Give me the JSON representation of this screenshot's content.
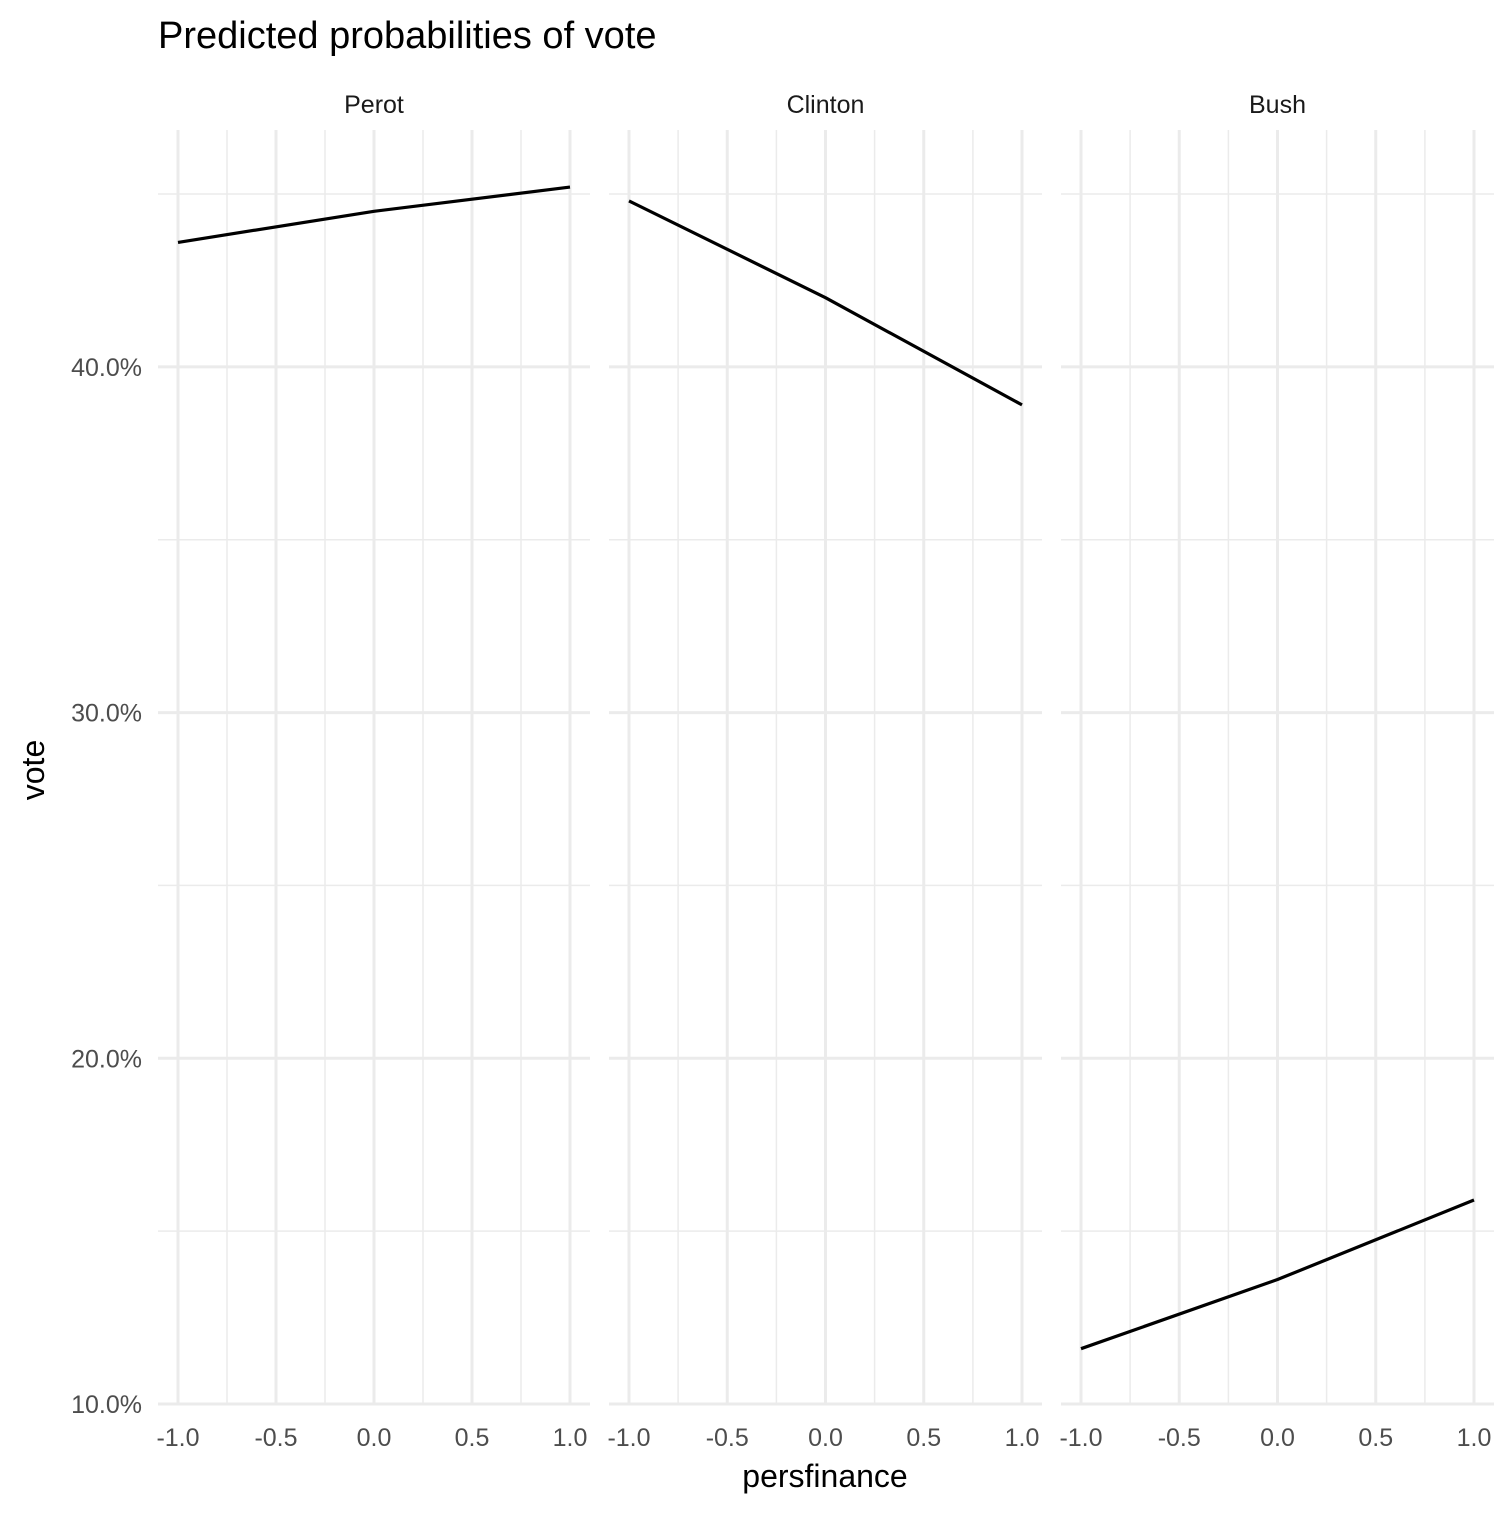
{
  "chart_data": {
    "type": "line",
    "title": "Predicted probabilities of vote",
    "xlabel": "persfinance",
    "ylabel": "vote",
    "xlim": [
      -1.0,
      1.0
    ],
    "ylim": [
      10.0,
      45.0
    ],
    "x_ticks": [
      "-1.0",
      "-0.5",
      "0.0",
      "0.5",
      "1.0"
    ],
    "x_tick_values": [
      -1.0,
      -0.5,
      0.0,
      0.5,
      1.0
    ],
    "y_ticks": [
      "10.0%",
      "20.0%",
      "30.0%",
      "40.0%"
    ],
    "y_tick_values": [
      10,
      20,
      30,
      40
    ],
    "grid": true,
    "x": [
      -1.0,
      0.0,
      1.0
    ],
    "facets": [
      {
        "label": "Perot",
        "values": [
          43.6,
          44.5,
          45.2
        ]
      },
      {
        "label": "Clinton",
        "values": [
          44.8,
          42.0,
          38.9
        ]
      },
      {
        "label": "Bush",
        "values": [
          11.6,
          13.6,
          15.9
        ]
      }
    ]
  }
}
